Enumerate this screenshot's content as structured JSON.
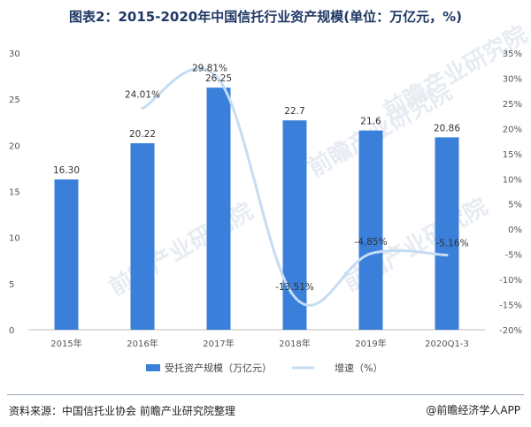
{
  "chart_data": {
    "type": "bar",
    "title": "图表2：2015-2020年中国信托行业资产规模(单位：万亿元，%)",
    "categories": [
      "2015年",
      "2016年",
      "2017年",
      "2018年",
      "2019年",
      "2020Q1-3"
    ],
    "series": [
      {
        "name": "受托资产规模（万亿元）",
        "type": "bar",
        "axis": "left",
        "values": [
          16.3,
          20.22,
          26.25,
          22.7,
          21.6,
          20.86
        ],
        "labels": [
          "16.30",
          "20.22",
          "26.25",
          "22.7",
          "21.6",
          "20.86"
        ],
        "color": "#3a7fd9"
      },
      {
        "name": "增速（%）",
        "type": "line",
        "axis": "right",
        "values": [
          null,
          24.01,
          29.81,
          -13.51,
          -4.85,
          -5.16
        ],
        "labels": [
          "",
          "24.01%",
          "29.81%",
          "-13.51%",
          "-4.85%",
          "-5.16%"
        ],
        "color": "#c5dcf3"
      }
    ],
    "y_left": {
      "ylim": [
        0,
        30
      ],
      "ticks": [
        0,
        5,
        10,
        15,
        20,
        25,
        30
      ]
    },
    "y_right": {
      "ylim": [
        -20,
        35
      ],
      "ticks": [
        -20,
        -15,
        -10,
        -5,
        0,
        5,
        10,
        15,
        20,
        25,
        30,
        35
      ],
      "tick_labels": [
        "-20%",
        "-15%",
        "-10%",
        "-5%",
        "0%",
        "5%",
        "10%",
        "15%",
        "20%",
        "25%",
        "30%",
        "35%"
      ]
    },
    "grid": false,
    "legend_position": "bottom"
  },
  "watermark": "前瞻产业研究院",
  "footer": {
    "source": "资料来源：中国信托业协会 前瞻产业研究院整理",
    "brand": "@前瞻经济学人APP"
  }
}
